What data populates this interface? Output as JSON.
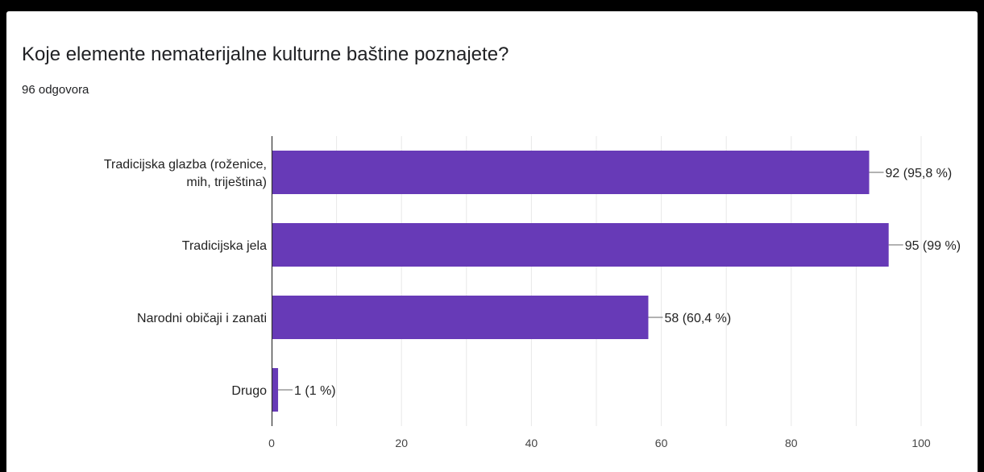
{
  "question": {
    "title": "Koje elemente nematerijalne kulturne baštine poznajete?",
    "responses": "96 odgovora"
  },
  "colors": {
    "bar": "#673ab7",
    "grid": "#e8e8e8",
    "axis": "#333333",
    "background": "#ffffff",
    "frame": "#000000"
  },
  "chart_data": {
    "type": "bar",
    "orientation": "horizontal",
    "categories": [
      [
        "Tradicijska glazba (roženice,",
        "mih, triještina)"
      ],
      [
        "Tradicijska jela"
      ],
      [
        "Narodni običaji i zanati"
      ],
      [
        "Drugo"
      ]
    ],
    "values": [
      92,
      95,
      58,
      1
    ],
    "data_labels": [
      "92 (95,8 %)",
      "95 (99 %)",
      "58 (60,4 %)",
      "1 (1 %)"
    ],
    "xlim": [
      0,
      100
    ],
    "xticks": [
      0,
      20,
      40,
      60,
      80,
      100
    ],
    "grid": true,
    "legend": "none"
  }
}
